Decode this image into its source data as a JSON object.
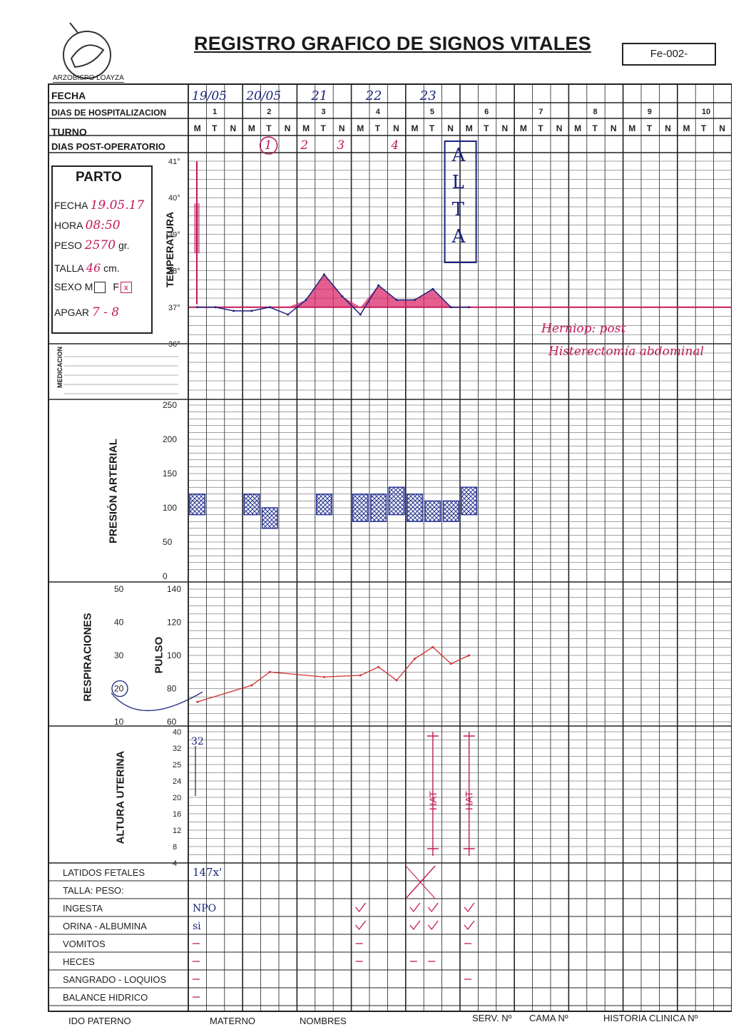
{
  "header": {
    "title": "REGISTRO GRAFICO DE SIGNOS VITALES",
    "form_code": "Fe-002-",
    "logo_text": "ARZOBISPO LOAYZA"
  },
  "top_rows": {
    "fecha": "FECHA",
    "dias_hosp": "DIAS DE HOSPITALIZACION",
    "turno": "TURNO",
    "dias_post": "DIAS POST-OPERATORIO"
  },
  "days": [
    "1",
    "2",
    "3",
    "4",
    "5",
    "6",
    "7",
    "8",
    "9",
    "10"
  ],
  "shift_letters": [
    "M",
    "T",
    "N"
  ],
  "handwritten_dates": [
    "19/05",
    "20/05",
    "21",
    "22",
    "23"
  ],
  "post_op_days": [
    "1",
    "2",
    "3",
    "4"
  ],
  "parto": {
    "heading": "PARTO",
    "fecha_label": "FECHA",
    "fecha_value": "19.05.17",
    "hora_label": "HORA",
    "hora_value": "08:50",
    "peso_label": "PESO",
    "peso_value": "2570",
    "peso_unit": "gr.",
    "talla_label": "TALLA",
    "talla_value": "46",
    "talla_unit": "cm.",
    "sexo_label": "SEXO",
    "sexo_m": "M",
    "sexo_f": "F",
    "apgar_label": "APGAR",
    "apgar_value": "7 - 8"
  },
  "sections": {
    "temperatura": "TEMPERATURA",
    "medicacion": "MEDICACION",
    "presion": "PRESIÓN ARTERIAL",
    "respiraciones": "RESPIRACIONES",
    "pulso": "PULSO",
    "altura": "ALTURA UTERINA"
  },
  "temp_ticks": [
    "41°",
    "40°",
    "39°",
    "38°",
    "37°",
    "36°"
  ],
  "pa_ticks": [
    "250",
    "200",
    "150",
    "100",
    "50",
    "0"
  ],
  "pulse_ticks": [
    "140",
    "120",
    "100",
    "80",
    "60"
  ],
  "resp_ticks": [
    "50",
    "40",
    "30",
    "20",
    "10"
  ],
  "altura_ticks": [
    "40",
    "32",
    "25",
    "24",
    "20",
    "16",
    "12",
    "8",
    "4"
  ],
  "bottom_rows": [
    "LATIDOS FETALES",
    "TALLA:      PESO:",
    "INGESTA",
    "ORINA - ALBUMINA",
    "VOMITOS",
    "HECES",
    "SANGRADO - LOQUIOS",
    "BALANCE HIDRICO"
  ],
  "footer": {
    "apellido_paterno": "IDO PATERNO",
    "materno": "MATERNO",
    "nombres": "NOMBRES",
    "serv": "SERV. Nº",
    "cama": "CAMA Nº",
    "historia": "HISTORIA CLINICA Nº"
  },
  "annotations": {
    "alta": "ALTA",
    "hat": "HAT",
    "diagnosis_line1": "Herniop: post",
    "diagnosis_line2": "Histerectomía abdominal",
    "latidos_value": "147x'",
    "ingesta_value": "NPO",
    "orina_value": "si",
    "altura_value": "32"
  },
  "chart_data": [
    {
      "type": "line",
      "title": "TEMPERATURA",
      "ylim": [
        36,
        41
      ],
      "x": [
        "1-M",
        "1-T",
        "1-N",
        "2-M",
        "2-T",
        "2-N",
        "3-M",
        "3-T",
        "3-N",
        "4-M",
        "4-T",
        "4-N",
        "5-M",
        "5-T",
        "5-N",
        "6-M"
      ],
      "values": [
        37.0,
        37.0,
        36.9,
        36.9,
        37.0,
        36.8,
        37.2,
        37.9,
        37.3,
        36.8,
        37.6,
        37.2,
        37.2,
        37.5,
        37.0,
        37.0
      ]
    },
    {
      "type": "bar",
      "title": "PRESIÓN ARTERIAL",
      "ylim": [
        0,
        250
      ],
      "x": [
        "1-M",
        "2-M",
        "2-T",
        "3-T",
        "4-M",
        "4-T",
        "4-N",
        "5-M",
        "5-T",
        "5-N",
        "6-M"
      ],
      "series": [
        {
          "name": "PAS",
          "values": [
            120,
            120,
            100,
            120,
            120,
            120,
            130,
            120,
            110,
            110,
            130
          ]
        },
        {
          "name": "PAD",
          "values": [
            90,
            90,
            70,
            90,
            80,
            80,
            90,
            80,
            80,
            80,
            90
          ]
        }
      ]
    },
    {
      "type": "line",
      "title": "PULSO",
      "ylim": [
        60,
        140
      ],
      "x": [
        "1-M",
        "2-M",
        "2-T",
        "3-T",
        "4-M",
        "4-T",
        "4-N",
        "5-M",
        "5-T",
        "5-N",
        "6-M"
      ],
      "values": [
        72,
        82,
        90,
        87,
        88,
        93,
        85,
        98,
        105,
        95,
        100
      ]
    }
  ]
}
